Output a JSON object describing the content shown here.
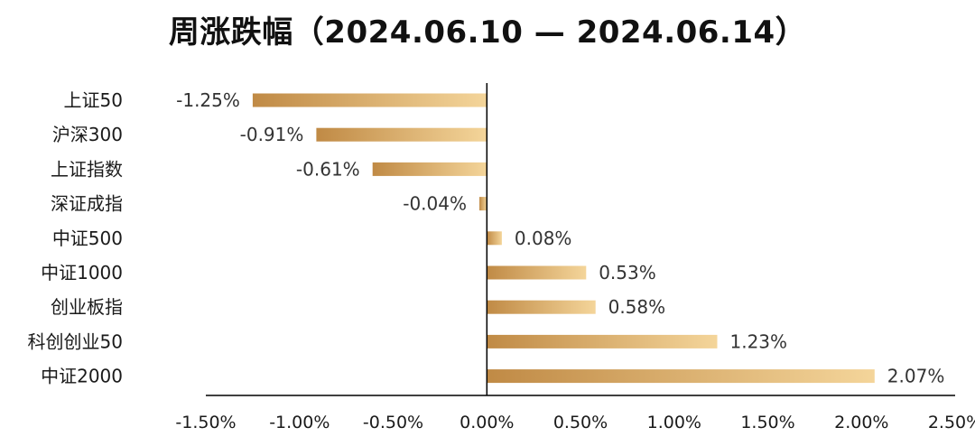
{
  "chart_data": {
    "type": "bar",
    "orientation": "horizontal",
    "title": "周涨跌幅（2024.06.10 — 2024.06.14）",
    "categories": [
      "上证50",
      "沪深300",
      "上证指数",
      "深证成指",
      "中证500",
      "中证1000",
      "创业板指",
      "科创创业50",
      "中证2000"
    ],
    "values": [
      -1.25,
      -0.91,
      -0.61,
      -0.04,
      0.08,
      0.53,
      0.58,
      1.23,
      2.07
    ],
    "value_labels": [
      "-1.25%",
      "-0.91%",
      "-0.61%",
      "-0.04%",
      "0.08%",
      "0.53%",
      "0.58%",
      "1.23%",
      "2.07%"
    ],
    "xlim": [
      -1.5,
      2.5
    ],
    "xticks": [
      -1.5,
      -1.0,
      -0.5,
      0.0,
      0.5,
      1.0,
      1.5,
      2.0,
      2.5
    ],
    "xtick_labels": [
      "-1.50%",
      "-1.00%",
      "-0.50%",
      "0.00%",
      "0.50%",
      "1.00%",
      "1.50%",
      "2.00%",
      "2.50%"
    ],
    "xlabel": "",
    "ylabel": "",
    "grid": false,
    "legend": "none",
    "colors": {
      "bar_dark": "#c08a45",
      "bar_light": "#f4d59a",
      "axis": "#000000"
    }
  }
}
